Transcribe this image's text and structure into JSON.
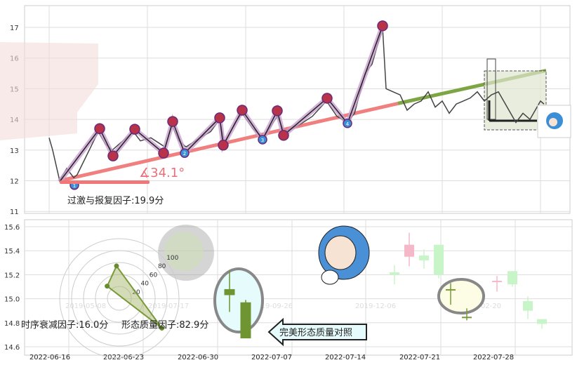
{
  "chart_data": [
    {
      "type": "line",
      "panel": "top",
      "y_ticks": [
        "17",
        "16",
        "15",
        "14",
        "13",
        "12",
        "11"
      ],
      "ylim": [
        11,
        17.2
      ],
      "grid": true,
      "price_series": [
        13.4,
        13.0,
        12.0,
        12.4,
        12.1,
        12.2,
        13.6,
        13.2,
        13.0,
        13.3,
        13.6,
        13.3,
        13.4,
        13.1,
        13.8,
        13.3,
        13.1,
        13.4,
        13.6,
        14.0,
        13.2,
        13.9,
        14.2,
        13.7,
        13.4,
        14.1,
        13.6,
        13.8,
        14.1,
        14.6,
        14.1,
        13.9,
        14.2,
        15.5,
        15.8,
        17.0,
        15.0,
        14.9,
        14.8,
        14.3,
        14.5,
        14.6,
        14.9,
        14.4,
        14.6,
        14.2,
        14.5,
        14.6,
        14.7,
        14.9,
        14.6,
        14.8,
        14.9,
        14.5,
        14.1,
        13.9,
        14.2,
        14.0,
        14.4,
        14.6,
        14.5
      ],
      "pivots": [
        {
          "label": "1",
          "type": "low",
          "value": 11.97
        },
        {
          "label": "",
          "type": "high",
          "value": 13.7
        },
        {
          "label": "",
          "type": "low",
          "value": 12.81
        },
        {
          "label": "",
          "type": "high",
          "value": 13.68
        },
        {
          "label": "",
          "type": "low",
          "value": 12.9
        },
        {
          "label": "",
          "type": "high",
          "value": 13.93
        },
        {
          "label": "2",
          "type": "low",
          "value": 12.9
        },
        {
          "label": "",
          "type": "high",
          "value": 14.05
        },
        {
          "label": "",
          "type": "low",
          "value": 13.16
        },
        {
          "label": "",
          "type": "high",
          "value": 14.3
        },
        {
          "label": "3",
          "type": "low",
          "value": 13.34
        },
        {
          "label": "",
          "type": "high",
          "value": 14.28
        },
        {
          "label": "",
          "type": "low",
          "value": 13.48
        },
        {
          "label": "",
          "type": "high",
          "value": 14.69
        },
        {
          "label": "4",
          "type": "low",
          "value": 13.87
        },
        {
          "label": "",
          "type": "high",
          "value": 17.05
        }
      ],
      "support_line": {
        "start": 12.0,
        "mid": 14.52,
        "end": 15.59,
        "color_fit": "#f08080",
        "color_projection": "#7da544"
      },
      "angle_label": "∡34.1°",
      "annotation": "过激与报复因子:19.9分",
      "colors": {
        "zigzag_highlight": "#c9a0d0",
        "pivot_high": "#b8324a",
        "pivot_low": "#3b8fd6",
        "price": "#444444"
      }
    },
    {
      "type": "candlestick",
      "panel": "bottom",
      "y_ticks": [
        "15.6",
        "15.4",
        "15.2",
        "15.0",
        "14.8",
        "14.6"
      ],
      "ylim": [
        14.52,
        15.66
      ],
      "x_ticks": [
        "2022-06-16",
        "2022-06-23",
        "2022-06-30",
        "2022-07-07",
        "2022-07-14",
        "2022-07-21",
        "2022-07-28"
      ],
      "watermark_dates": [
        "2019-05-08",
        "2019-07-17",
        "2019-09-26",
        "2019-12-06",
        "2020-02-20"
      ],
      "highlight_candles": [
        {
          "open": 15.03,
          "close": 15.08,
          "high": 15.23,
          "low": 14.89
        },
        {
          "open": 14.97,
          "close": 14.67,
          "high": 14.99,
          "low": 14.67
        }
      ],
      "faded_candles": [
        {
          "open": 15.2,
          "close": 15.22,
          "high": 15.28,
          "low": 15.12,
          "dir": "up"
        },
        {
          "open": 15.45,
          "close": 15.35,
          "high": 15.55,
          "low": 15.27,
          "dir": "down"
        },
        {
          "open": 15.36,
          "close": 15.32,
          "high": 15.41,
          "low": 15.25,
          "dir": "up"
        },
        {
          "open": 15.45,
          "close": 15.2,
          "high": 15.45,
          "low": 15.17,
          "dir": "up"
        },
        {
          "open": 15.08,
          "close": 15.07,
          "high": 15.13,
          "low": 14.95,
          "dir": "up"
        },
        {
          "open": 14.85,
          "close": 14.84,
          "high": 14.92,
          "low": 14.82,
          "dir": "up"
        },
        {
          "open": 15.14,
          "close": 15.15,
          "high": 15.19,
          "low": 15.06,
          "dir": "down"
        },
        {
          "open": 15.23,
          "close": 15.12,
          "high": 15.23,
          "low": 15.1,
          "dir": "up"
        },
        {
          "open": 14.98,
          "close": 14.9,
          "high": 15.02,
          "low": 14.83,
          "dir": "up"
        },
        {
          "open": 14.83,
          "close": 14.79,
          "high": 14.83,
          "low": 14.75,
          "dir": "up"
        }
      ],
      "radar": {
        "ring_labels": [
          "20",
          "40",
          "60",
          "80",
          "100"
        ],
        "values": [
          16.0,
          19.9,
          82.9
        ]
      },
      "annotations": {
        "time_decay": "时序衰减因子:16.0分",
        "shape_quality": "形态质量因子:82.9分",
        "callout": "完美形态质量对照"
      }
    }
  ]
}
